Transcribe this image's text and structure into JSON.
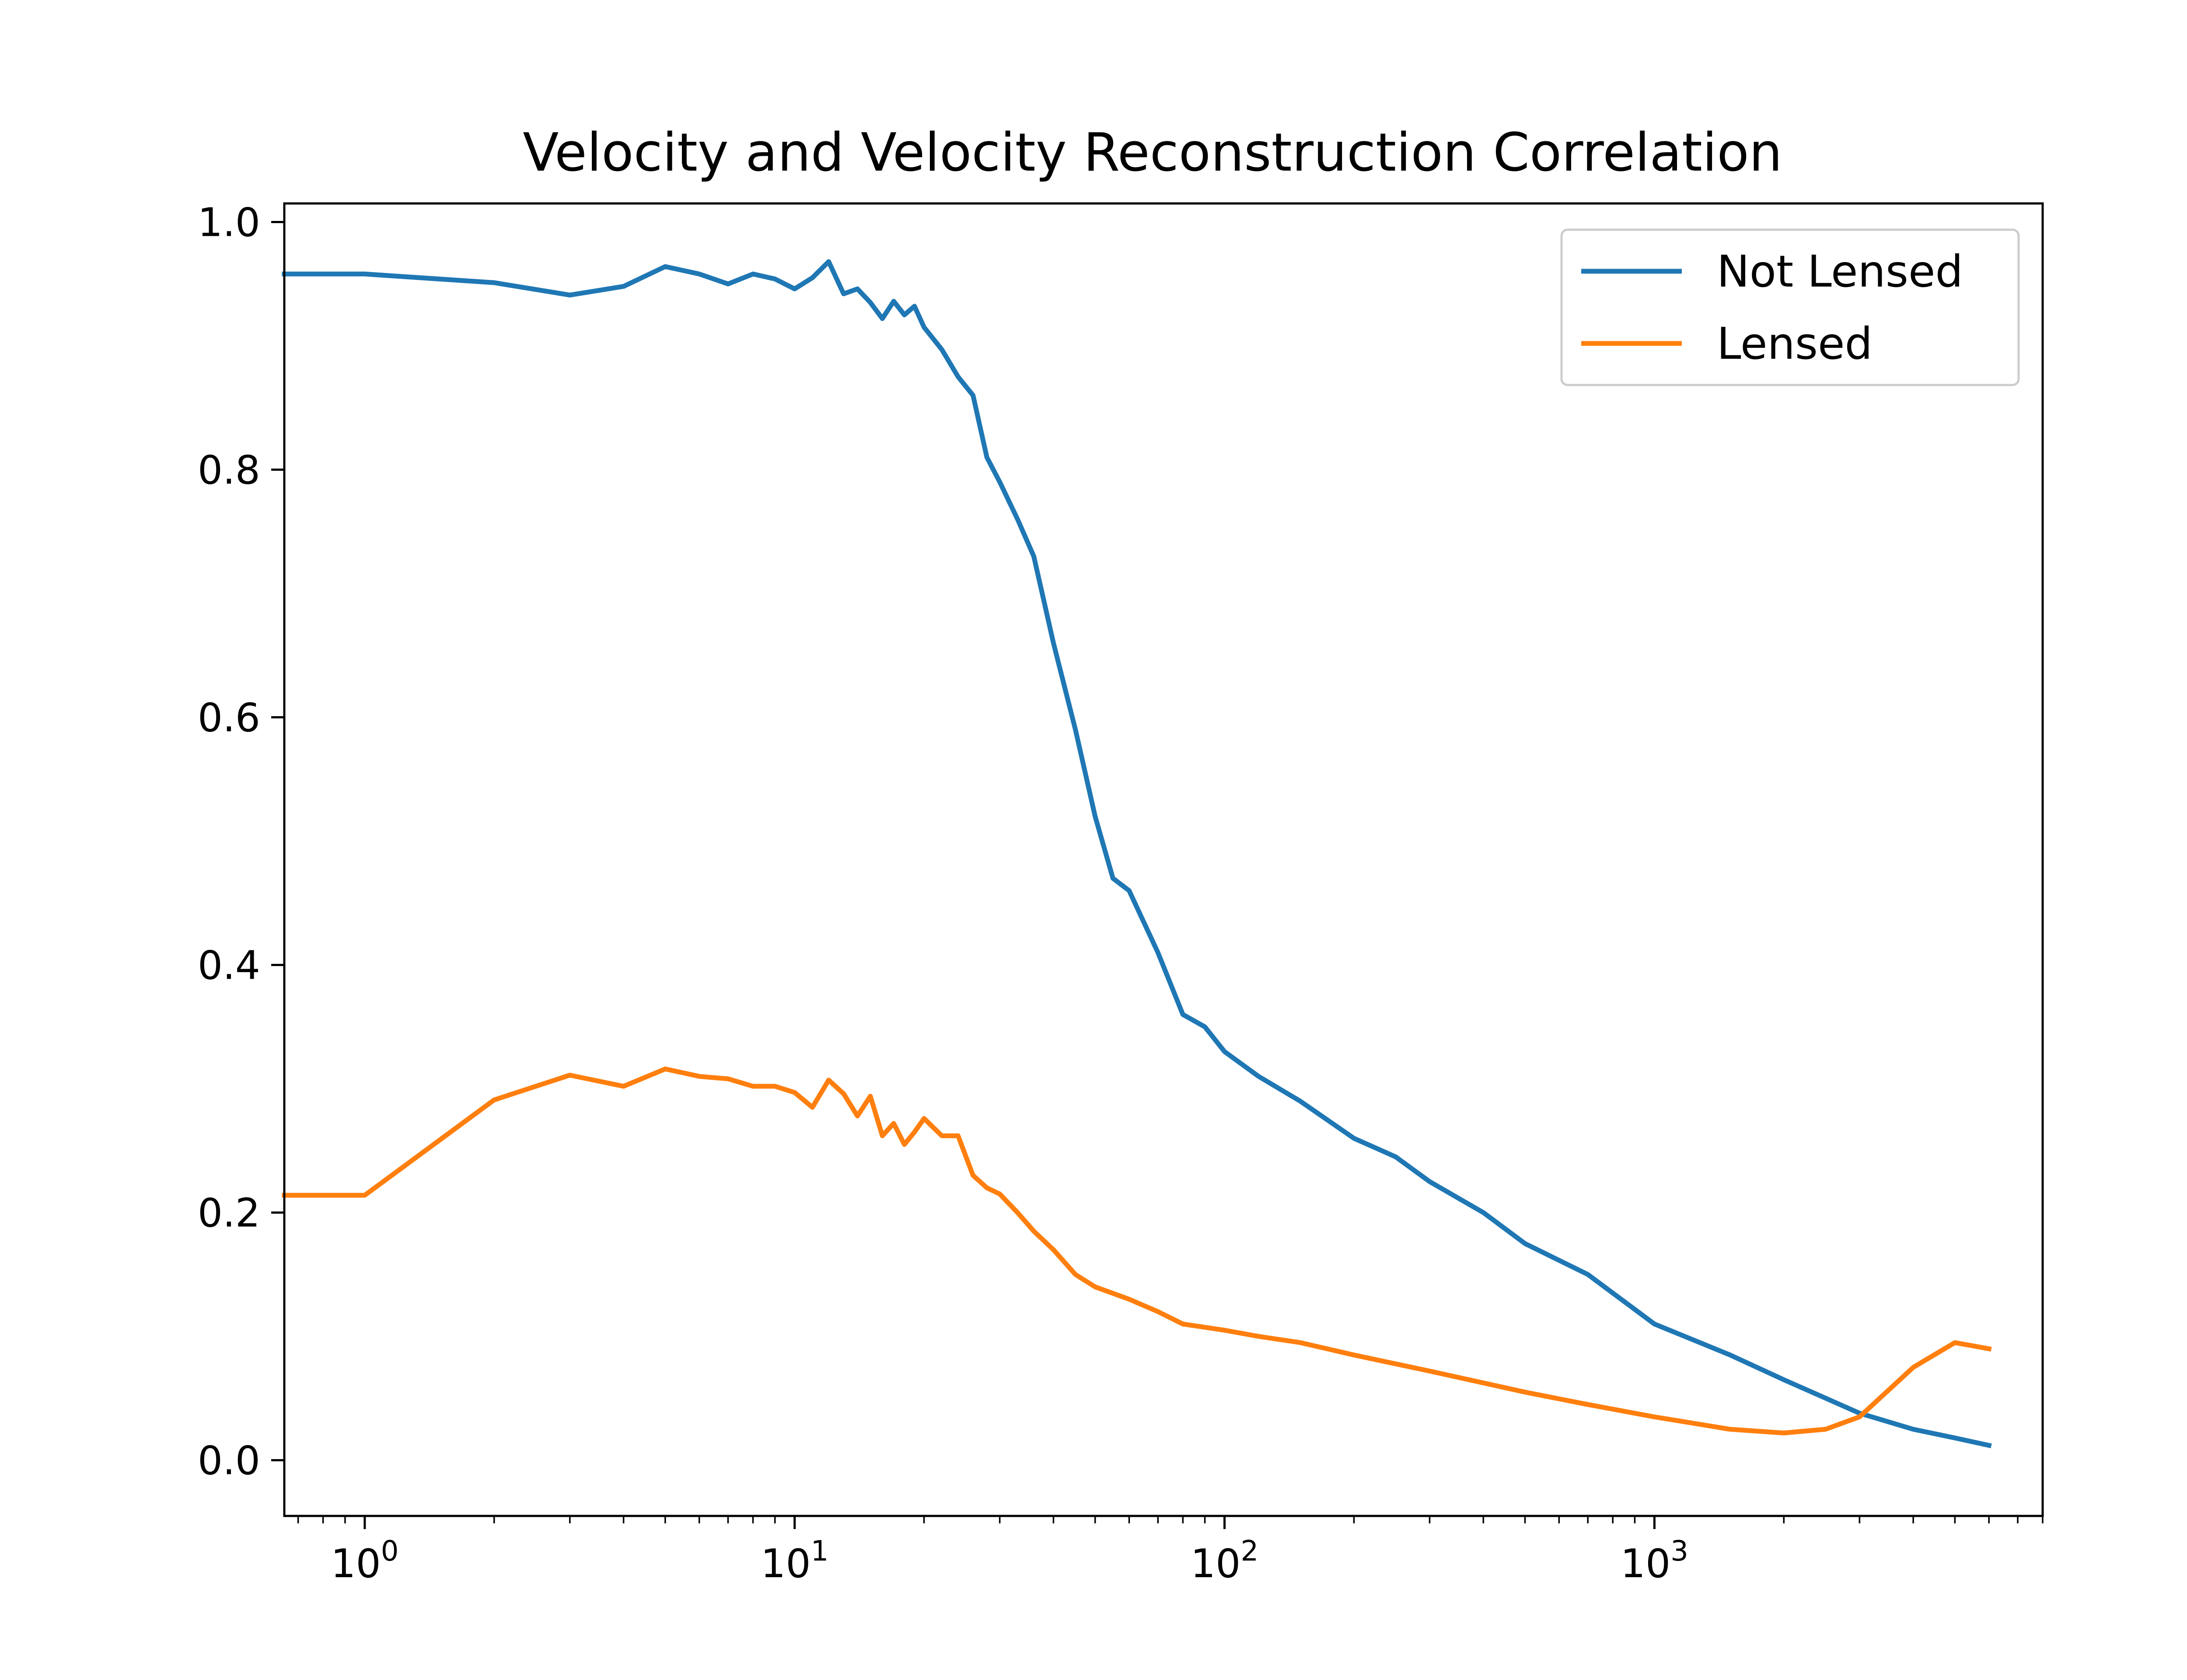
{
  "chart_data": {
    "type": "line",
    "title": "Velocity and Velocity Reconstruction Correlation",
    "xlabel": "",
    "ylabel": "",
    "xscale": "log",
    "xlim": [
      0.65,
      8000
    ],
    "ylim": [
      -0.045,
      1.015
    ],
    "grid": false,
    "legend_position": "top-right",
    "x_ticks": [
      {
        "base": "10",
        "exp": "0",
        "value": 1
      },
      {
        "base": "10",
        "exp": "1",
        "value": 10
      },
      {
        "base": "10",
        "exp": "2",
        "value": 100
      },
      {
        "base": "10",
        "exp": "3",
        "value": 1000
      }
    ],
    "y_ticks": [
      "0.0",
      "0.2",
      "0.4",
      "0.6",
      "0.8",
      "1.0"
    ],
    "series": [
      {
        "name": "Not Lensed",
        "color": "#1f77b4",
        "x": [
          0.65,
          1,
          2,
          3,
          4,
          5,
          6,
          7,
          8,
          9,
          10,
          11,
          12,
          13,
          14,
          15,
          16,
          17,
          18,
          19,
          20,
          22,
          24,
          26,
          28,
          30,
          33,
          36,
          40,
          45,
          50,
          55,
          60,
          70,
          80,
          90,
          100,
          120,
          150,
          200,
          250,
          300,
          400,
          500,
          700,
          1000,
          1500,
          2000,
          3000,
          4000,
          5000,
          6000
        ],
        "y": [
          0.958,
          0.958,
          0.951,
          0.941,
          0.948,
          0.964,
          0.958,
          0.95,
          0.958,
          0.954,
          0.946,
          0.955,
          0.968,
          0.942,
          0.946,
          0.935,
          0.922,
          0.936,
          0.925,
          0.932,
          0.915,
          0.897,
          0.875,
          0.86,
          0.81,
          0.79,
          0.76,
          0.73,
          0.66,
          0.59,
          0.52,
          0.47,
          0.46,
          0.41,
          0.36,
          0.35,
          0.33,
          0.31,
          0.29,
          0.26,
          0.245,
          0.225,
          0.2,
          0.175,
          0.15,
          0.11,
          0.085,
          0.065,
          0.038,
          0.025,
          0.018,
          0.012
        ]
      },
      {
        "name": "Lensed",
        "color": "#ff7f0e",
        "x": [
          0.65,
          1,
          2,
          3,
          4,
          5,
          6,
          7,
          8,
          9,
          10,
          11,
          12,
          13,
          14,
          15,
          16,
          17,
          18,
          19,
          20,
          22,
          24,
          26,
          28,
          30,
          33,
          36,
          40,
          45,
          50,
          60,
          70,
          80,
          100,
          120,
          150,
          200,
          300,
          500,
          700,
          1000,
          1500,
          2000,
          2500,
          3000,
          4000,
          5000,
          6000
        ],
        "y": [
          0.214,
          0.214,
          0.291,
          0.311,
          0.302,
          0.316,
          0.31,
          0.308,
          0.302,
          0.302,
          0.297,
          0.285,
          0.307,
          0.296,
          0.278,
          0.294,
          0.262,
          0.272,
          0.255,
          0.265,
          0.276,
          0.262,
          0.262,
          0.23,
          0.22,
          0.215,
          0.2,
          0.185,
          0.17,
          0.15,
          0.14,
          0.13,
          0.12,
          0.11,
          0.105,
          0.1,
          0.095,
          0.085,
          0.072,
          0.055,
          0.045,
          0.035,
          0.025,
          0.022,
          0.025,
          0.035,
          0.075,
          0.095,
          0.09
        ]
      }
    ]
  }
}
